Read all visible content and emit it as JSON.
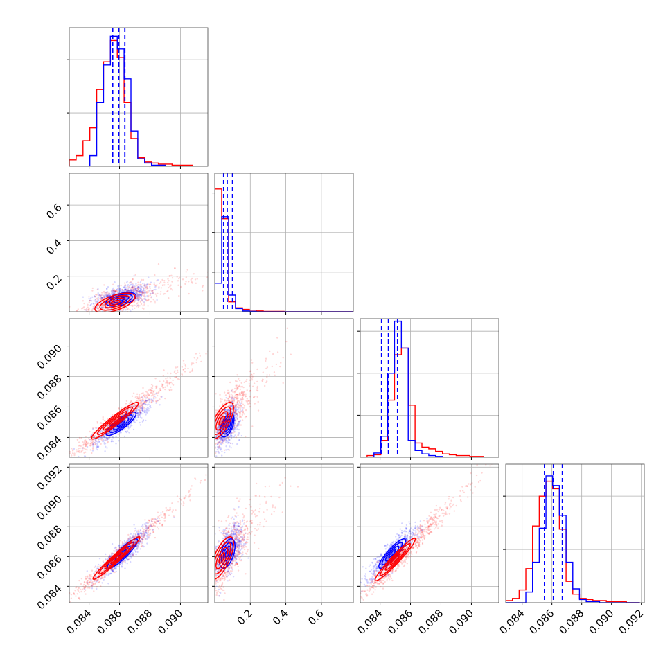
{
  "chart_data": {
    "type": "corner",
    "grid": true,
    "colors": {
      "blue": "#0000ff",
      "red": "#ff0000"
    },
    "params": [
      {
        "range": [
          0.0827,
          0.0918
        ],
        "ticks": [
          0.084,
          0.086,
          0.088,
          0.09
        ],
        "tick_labels": [
          "0.084",
          "0.086",
          "0.088",
          "0.090"
        ]
      },
      {
        "range": [
          0.0,
          0.78
        ],
        "ticks": [
          0.2,
          0.4,
          0.6
        ],
        "tick_labels": [
          "0.2",
          "0.4",
          "0.6"
        ]
      },
      {
        "range": [
          0.0827,
          0.0918
        ],
        "ticks": [
          0.084,
          0.086,
          0.088,
          0.09
        ],
        "tick_labels": [
          "0.084",
          "0.086",
          "0.088",
          "0.090"
        ]
      },
      {
        "range": [
          0.0829,
          0.0922
        ],
        "ticks": [
          0.084,
          0.086,
          0.088,
          0.09,
          0.092
        ],
        "tick_labels": [
          "0.084",
          "0.086",
          "0.088",
          "0.090",
          "0.092"
        ]
      }
    ],
    "histograms": [
      {
        "param": 0,
        "ylim": [
          0,
          1.3
        ],
        "yticks": [
          0.5,
          1.0
        ],
        "bin_edges": [
          0.0827,
          0.08315,
          0.0836,
          0.08405,
          0.0845,
          0.08495,
          0.0854,
          0.08585,
          0.0863,
          0.08675,
          0.0872,
          0.08765,
          0.0881,
          0.08855,
          0.089,
          0.08945,
          0.0899,
          0.09035,
          0.0908,
          0.09125,
          0.0917
        ],
        "blue": [
          0.0,
          0.0,
          0.0,
          0.1,
          0.6,
          0.95,
          1.22,
          1.1,
          0.82,
          0.33,
          0.07,
          0.03,
          0.01,
          0.01,
          0.0,
          0.0,
          0.0,
          0.0,
          0.0,
          0.0
        ],
        "red": [
          0.06,
          0.1,
          0.24,
          0.36,
          0.72,
          0.98,
          1.18,
          1.02,
          0.6,
          0.26,
          0.08,
          0.04,
          0.03,
          0.02,
          0.02,
          0.01,
          0.01,
          0.01,
          0.0,
          0.0
        ],
        "quantiles": [
          0.08555,
          0.08595,
          0.08635
        ]
      },
      {
        "param": 1,
        "ylim": [
          0,
          3.5
        ],
        "yticks": [
          1.0,
          2.0,
          3.0
        ],
        "bin_edges": [
          0.0,
          0.039,
          0.078,
          0.117,
          0.156,
          0.195,
          0.234,
          0.273,
          0.312,
          0.351,
          0.39,
          0.429,
          0.468,
          0.507,
          0.546,
          0.585,
          0.624,
          0.663,
          0.702,
          0.741,
          0.78
        ],
        "blue": [
          0.72,
          2.4,
          0.42,
          0.08,
          0.02,
          0.01,
          0.0,
          0.0,
          0.0,
          0.0,
          0.0,
          0.0,
          0.0,
          0.0,
          0.0,
          0.0,
          0.0,
          0.0,
          0.0,
          0.0
        ],
        "red": [
          3.1,
          2.35,
          0.25,
          0.1,
          0.06,
          0.04,
          0.02,
          0.01,
          0.01,
          0.01,
          0.0,
          0.0,
          0.0,
          0.0,
          0.0,
          0.0,
          0.0,
          0.0,
          0.0,
          0.0
        ],
        "quantiles": [
          0.05,
          0.07,
          0.1
        ]
      },
      {
        "param": 2,
        "ylim": [
          0,
          1.65
        ],
        "yticks": [
          0.5,
          1.0,
          1.5
        ],
        "bin_edges": [
          0.0827,
          0.08315,
          0.0836,
          0.08405,
          0.0845,
          0.08495,
          0.0854,
          0.08585,
          0.0863,
          0.08675,
          0.0872,
          0.08765,
          0.0881,
          0.08855,
          0.089,
          0.08945,
          0.0899,
          0.09035,
          0.0908,
          0.09125,
          0.0917
        ],
        "blue": [
          0.0,
          0.0,
          0.05,
          0.25,
          1.0,
          1.62,
          1.3,
          0.2,
          0.08,
          0.04,
          0.02,
          0.01,
          0.0,
          0.0,
          0.0,
          0.0,
          0.0,
          0.0,
          0.0,
          0.0
        ],
        "red": [
          0.0,
          0.02,
          0.03,
          0.2,
          0.68,
          1.22,
          1.3,
          0.62,
          0.17,
          0.12,
          0.1,
          0.07,
          0.04,
          0.03,
          0.02,
          0.02,
          0.01,
          0.01,
          0.0,
          0.0
        ],
        "quantiles": [
          0.0841,
          0.08455,
          0.08515
        ]
      },
      {
        "param": 3,
        "ylim": [
          0,
          1.3
        ],
        "yticks": [
          0.5,
          1.0
        ],
        "bin_edges": [
          0.0829,
          0.08335,
          0.0838,
          0.08425,
          0.0847,
          0.08515,
          0.0856,
          0.08605,
          0.0865,
          0.08695,
          0.0874,
          0.08785,
          0.0883,
          0.08875,
          0.0892,
          0.08965,
          0.0901,
          0.09055,
          0.091,
          0.09145,
          0.0919
        ],
        "blue": [
          0.0,
          0.0,
          0.0,
          0.1,
          0.38,
          0.7,
          1.19,
          1.1,
          0.82,
          0.38,
          0.13,
          0.03,
          0.01,
          0.01,
          0.0,
          0.0,
          0.0,
          0.0,
          0.0,
          0.0
        ],
        "red": [
          0.02,
          0.04,
          0.12,
          0.32,
          0.72,
          1.0,
          1.14,
          1.07,
          0.69,
          0.2,
          0.08,
          0.04,
          0.03,
          0.02,
          0.02,
          0.01,
          0.01,
          0.01,
          0.0,
          0.0
        ],
        "quantiles": [
          0.0855,
          0.0861,
          0.0867
        ]
      }
    ],
    "scatter_panels": [
      {
        "x_param": 0,
        "y_param": 1,
        "blue": {
          "mean": [
            0.0862,
            0.09
          ],
          "sd": [
            0.0009,
            0.035
          ],
          "rho": 0.5,
          "contour_center": [
            0.0861,
            0.07
          ]
        },
        "red": {
          "mean": [
            0.0858,
            0.06
          ],
          "sd": [
            0.0012,
            0.05
          ],
          "rho": 0.6,
          "contour_center": [
            0.0857,
            0.05
          ]
        }
      },
      {
        "x_param": 0,
        "y_param": 2,
        "blue": {
          "mean": [
            0.0861,
            0.0849
          ],
          "sd": [
            0.0009,
            0.0007
          ],
          "rho": 0.85,
          "contour_center": [
            0.0861,
            0.0849
          ]
        },
        "red": {
          "mean": [
            0.0858,
            0.0851
          ],
          "sd": [
            0.0014,
            0.0011
          ],
          "rho": 0.95,
          "contour_center": [
            0.0857,
            0.0851
          ]
        }
      },
      {
        "x_param": 1,
        "y_param": 2,
        "blue": {
          "mean": [
            0.07,
            0.0848
          ],
          "sd": [
            0.035,
            0.0007
          ],
          "rho": 0.5,
          "contour_center": [
            0.07,
            0.0848
          ]
        },
        "red": {
          "mean": [
            0.06,
            0.0852
          ],
          "sd": [
            0.06,
            0.0011
          ],
          "rho": 0.7,
          "contour_center": [
            0.04,
            0.0851
          ]
        }
      },
      {
        "x_param": 0,
        "y_param": 3,
        "blue": {
          "mean": [
            0.0862,
            0.0862
          ],
          "sd": [
            0.0009,
            0.0009
          ],
          "rho": 0.9,
          "contour_center": [
            0.0862,
            0.0862
          ]
        },
        "red": {
          "mean": [
            0.0858,
            0.0859
          ],
          "sd": [
            0.0014,
            0.0013
          ],
          "rho": 0.97,
          "contour_center": [
            0.0858,
            0.0859
          ]
        }
      },
      {
        "x_param": 1,
        "y_param": 3,
        "blue": {
          "mean": [
            0.08,
            0.0865
          ],
          "sd": [
            0.04,
            0.0009
          ],
          "rho": 0.5,
          "contour_center": [
            0.07,
            0.0862
          ]
        },
        "red": {
          "mean": [
            0.06,
            0.086
          ],
          "sd": [
            0.06,
            0.0013
          ],
          "rho": 0.7,
          "contour_center": [
            0.04,
            0.0859
          ]
        }
      },
      {
        "x_param": 2,
        "y_param": 3,
        "blue": {
          "mean": [
            0.0848,
            0.0862
          ],
          "sd": [
            0.0008,
            0.0009
          ],
          "rho": 0.88,
          "contour_center": [
            0.0848,
            0.0862
          ]
        },
        "red": {
          "mean": [
            0.0852,
            0.0859
          ],
          "sd": [
            0.0012,
            0.0013
          ],
          "rho": 0.96,
          "contour_center": [
            0.085,
            0.0858
          ]
        }
      }
    ]
  }
}
